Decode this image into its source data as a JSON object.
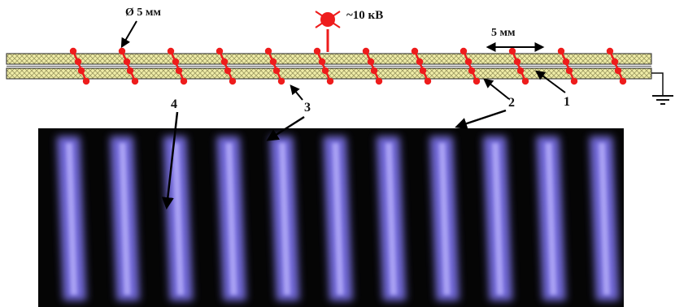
{
  "labels": {
    "wire_diameter": "Ø 5 мм",
    "voltage": "~10 кВ",
    "pitch": "5 мм",
    "n1": "1",
    "n2": "2",
    "n3": "3",
    "n4": "4"
  },
  "colors": {
    "dielectric": "#f0eda8",
    "hatch": "#9d9a62",
    "electrode": "#ee1c1c",
    "photo_background": "#050505",
    "discharge": "#7b72e8",
    "discharge_core": "#c4bdff",
    "arrow": "#000000"
  },
  "icons": [
    "hv-source-icon",
    "ground-icon"
  ],
  "discharge_strip_count": 11,
  "electrode_turn_count": 12
}
